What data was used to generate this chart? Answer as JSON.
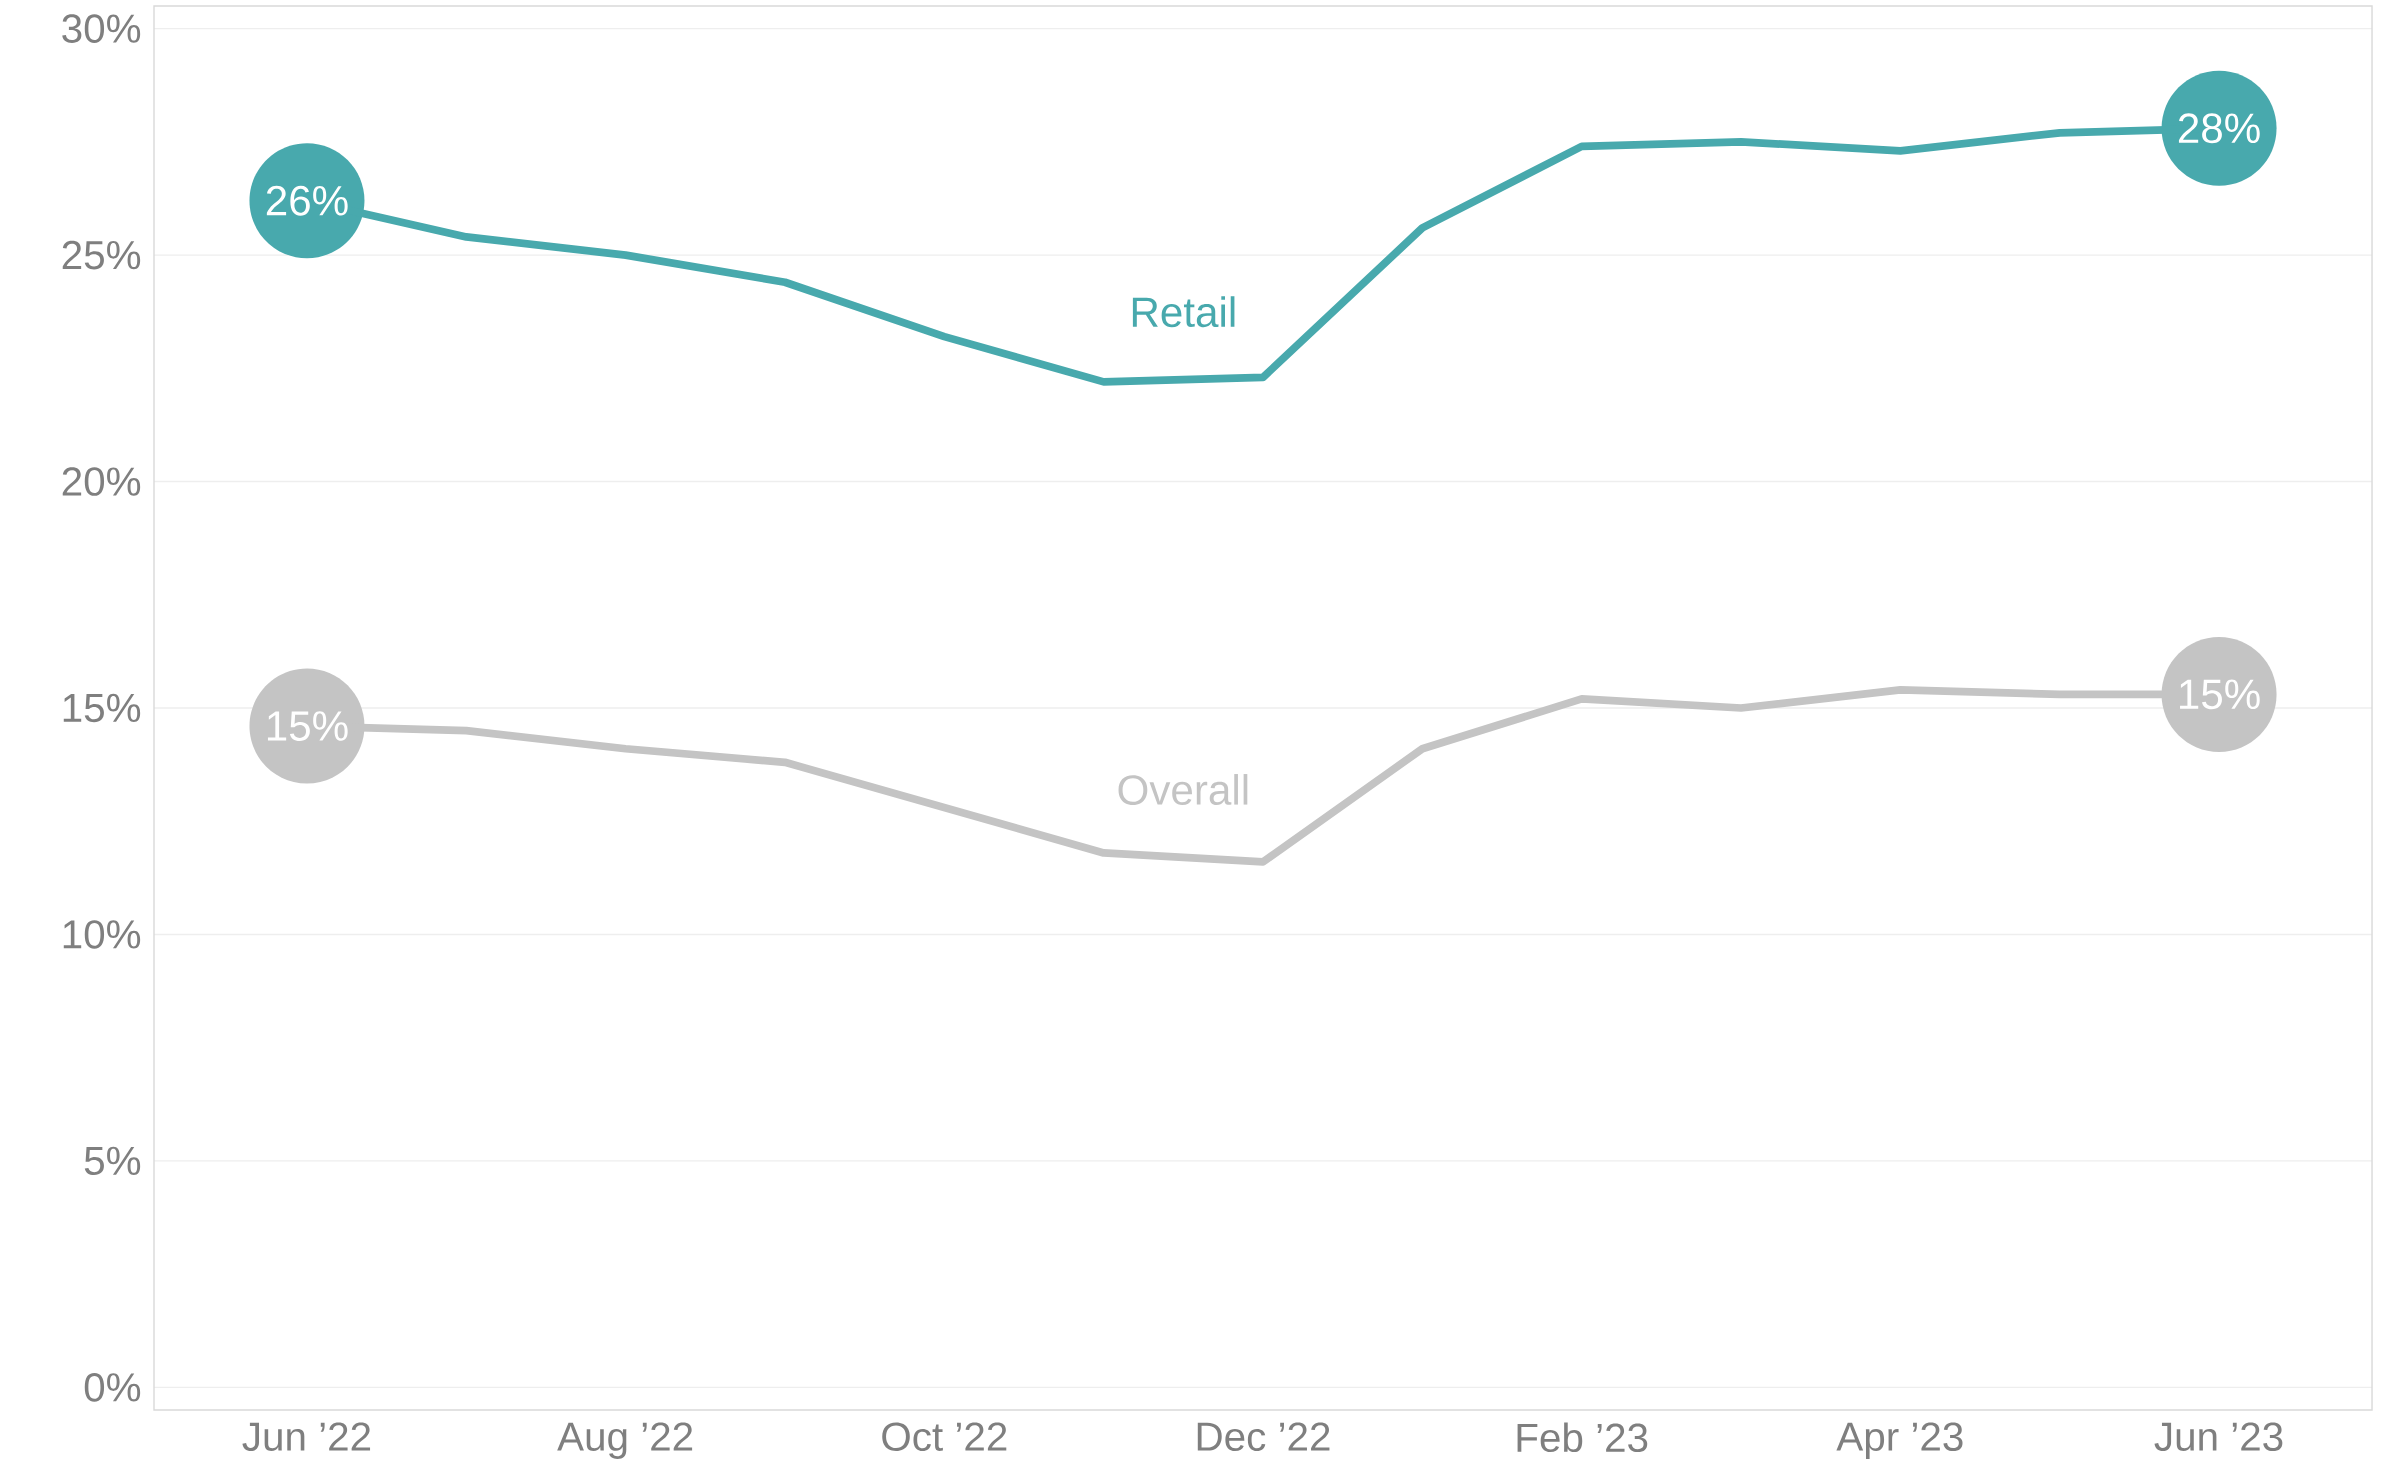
{
  "chart_data": {
    "type": "line",
    "categories": [
      "Jun ’22",
      null,
      "Aug ’22",
      null,
      "Oct ’22",
      null,
      "Dec ’22",
      null,
      "Feb ’23",
      null,
      "Apr ’23",
      null,
      "Jun ’23"
    ],
    "series": [
      {
        "name": "Retail",
        "color": "#48a9ad",
        "values": [
          26.2,
          25.4,
          25.0,
          24.4,
          23.2,
          22.2,
          22.3,
          25.6,
          27.4,
          27.5,
          27.3,
          27.7,
          27.8
        ],
        "value_labels": [
          "26%",
          null,
          null,
          null,
          null,
          null,
          null,
          null,
          null,
          null,
          null,
          null,
          "28%"
        ]
      },
      {
        "name": "Overall",
        "color": "#c4c4c4",
        "values": [
          14.6,
          14.5,
          14.1,
          13.8,
          12.8,
          11.8,
          11.6,
          14.1,
          15.2,
          15.0,
          15.4,
          15.3,
          15.3
        ],
        "value_labels": [
          "15%",
          null,
          null,
          null,
          null,
          null,
          null,
          null,
          null,
          null,
          null,
          null,
          "15%"
        ]
      }
    ],
    "ylim": [
      -0.5,
      30.5
    ],
    "yticks": [
      {
        "value": 0,
        "label": "0%"
      },
      {
        "value": 5,
        "label": "5%"
      },
      {
        "value": 10,
        "label": "10%"
      },
      {
        "value": 15,
        "label": "15%"
      },
      {
        "value": 20,
        "label": "20%"
      },
      {
        "value": 25,
        "label": "25%"
      },
      {
        "value": 30,
        "label": "30%"
      }
    ],
    "grid": "y"
  }
}
